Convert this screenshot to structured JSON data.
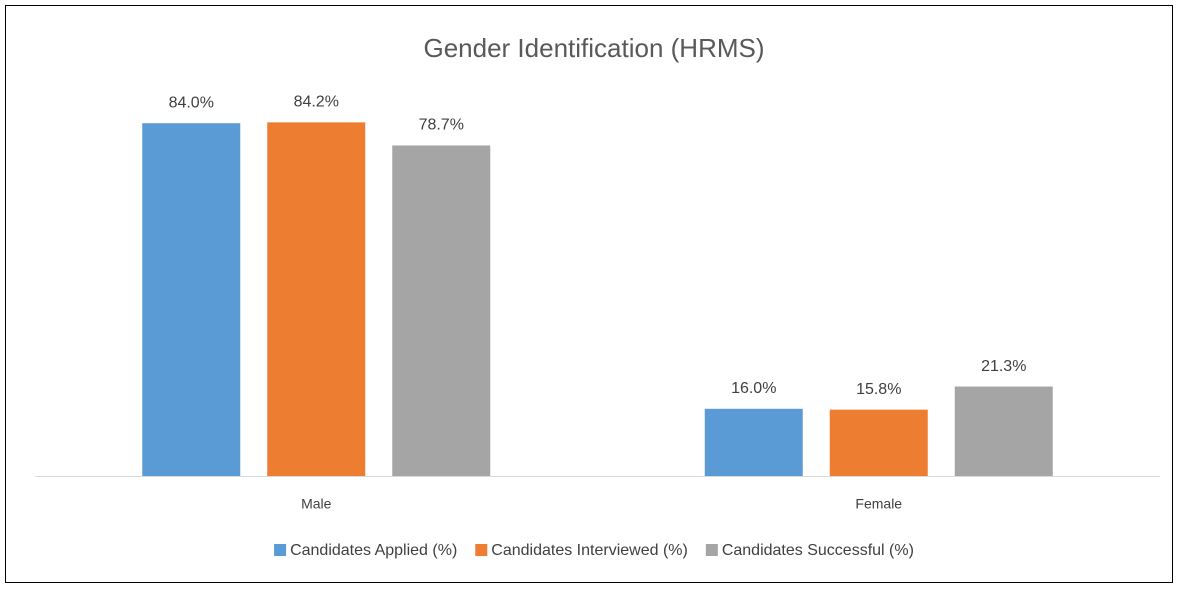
{
  "chart_data": {
    "type": "bar",
    "title": "Gender Identification (HRMS)",
    "categories": [
      "Male",
      "Female"
    ],
    "series": [
      {
        "name": "Candidates Applied (%)",
        "color": "#5b9bd5",
        "values": [
          84.0,
          16.0
        ],
        "value_labels": [
          "84.0%",
          "16.0%"
        ]
      },
      {
        "name": "Candidates Interviewed (%)",
        "color": "#ed7d31",
        "values": [
          84.2,
          15.8
        ],
        "value_labels": [
          "84.2%",
          "15.8%"
        ]
      },
      {
        "name": "Candidates Successful (%)",
        "color": "#a5a5a5",
        "values": [
          78.7,
          21.3
        ],
        "value_labels": [
          "78.7%",
          "21.3%"
        ]
      }
    ],
    "ylim": [
      0,
      100
    ],
    "legend": "bottom"
  }
}
